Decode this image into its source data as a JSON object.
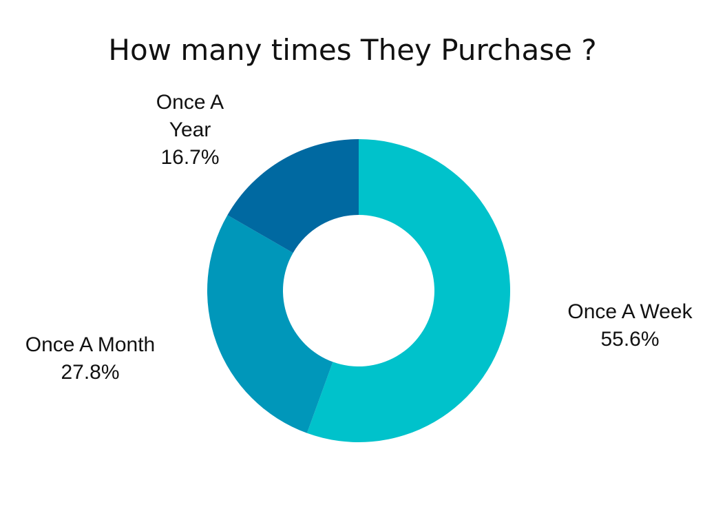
{
  "chart_data": {
    "type": "pie",
    "variant": "donut",
    "title": "How many times They Purchase ?",
    "categories": [
      "Once A Week",
      "Once A Month",
      "Once A Year"
    ],
    "values": [
      55.6,
      27.8,
      16.7
    ],
    "value_labels": [
      "55.6%",
      "27.8%",
      "16.7%"
    ],
    "colors": [
      "#00C2CB",
      "#0097BA",
      "#0069A1"
    ],
    "label_lines": [
      [
        "Once A Week"
      ],
      [
        "Once A Month"
      ],
      [
        "Once A",
        "Year"
      ]
    ],
    "legend": "none"
  }
}
